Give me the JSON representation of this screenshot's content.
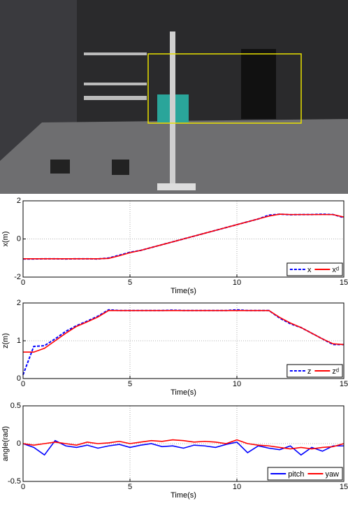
{
  "chart_data": [
    {
      "type": "line",
      "xlabel": "Time(s)",
      "ylabel": "x(m)",
      "x": [
        0,
        0.5,
        1,
        1.5,
        2,
        2.5,
        3,
        3.5,
        4,
        4.5,
        5,
        5.5,
        6,
        6.5,
        7,
        7.5,
        8,
        8.5,
        9,
        9.5,
        10,
        10.5,
        11,
        11.5,
        12,
        12.5,
        13,
        13.5,
        14,
        14.5,
        15
      ],
      "xlim": [
        0,
        15
      ],
      "xticks": [
        0,
        5,
        10,
        15
      ],
      "ylim": [
        -2,
        2
      ],
      "yticks": [
        -2,
        0,
        2
      ],
      "grid": true,
      "legend": "lower right",
      "series": [
        {
          "name": "x",
          "color": "#0000ff",
          "style": "dashed",
          "values": [
            -1.05,
            -1.05,
            -1.04,
            -1.04,
            -1.05,
            -1.04,
            -1.04,
            -1.05,
            -1.0,
            -0.85,
            -0.7,
            -0.6,
            -0.45,
            -0.3,
            -0.15,
            0.0,
            0.15,
            0.3,
            0.45,
            0.6,
            0.75,
            0.9,
            1.05,
            1.25,
            1.3,
            1.27,
            1.28,
            1.28,
            1.3,
            1.28,
            1.12
          ]
        },
        {
          "name": "xᵈ",
          "color": "#ff0000",
          "style": "solid",
          "values": [
            -1.04,
            -1.04,
            -1.04,
            -1.04,
            -1.04,
            -1.04,
            -1.04,
            -1.04,
            -1.02,
            -0.88,
            -0.72,
            -0.6,
            -0.45,
            -0.3,
            -0.15,
            0,
            0.15,
            0.3,
            0.45,
            0.6,
            0.75,
            0.9,
            1.05,
            1.2,
            1.3,
            1.28,
            1.28,
            1.28,
            1.28,
            1.28,
            1.15
          ]
        }
      ]
    },
    {
      "type": "line",
      "xlabel": "Time(s)",
      "ylabel": "z(m)",
      "x": [
        0,
        0.5,
        1,
        1.5,
        2,
        2.5,
        3,
        3.5,
        4,
        4.5,
        5,
        5.5,
        6,
        6.5,
        7,
        7.5,
        8,
        8.5,
        9,
        9.5,
        10,
        10.5,
        11,
        11.5,
        12,
        12.5,
        13,
        13.5,
        14,
        14.5,
        15
      ],
      "xlim": [
        0,
        15
      ],
      "xticks": [
        0,
        5,
        10,
        15
      ],
      "ylim": [
        0,
        2
      ],
      "yticks": [
        0,
        1,
        2
      ],
      "grid": true,
      "legend": "lower right",
      "series": [
        {
          "name": "z",
          "color": "#0000ff",
          "style": "dashed",
          "values": [
            0.1,
            0.85,
            0.87,
            1.05,
            1.25,
            1.4,
            1.52,
            1.65,
            1.82,
            1.8,
            1.8,
            1.8,
            1.8,
            1.8,
            1.81,
            1.8,
            1.8,
            1.8,
            1.8,
            1.8,
            1.82,
            1.8,
            1.8,
            1.8,
            1.6,
            1.45,
            1.35,
            1.2,
            1.05,
            0.9,
            0.9
          ]
        },
        {
          "name": "zᵈ",
          "color": "#ff0000",
          "style": "solid",
          "values": [
            0.7,
            0.7,
            0.8,
            1.0,
            1.2,
            1.38,
            1.5,
            1.63,
            1.8,
            1.8,
            1.8,
            1.8,
            1.8,
            1.8,
            1.8,
            1.8,
            1.8,
            1.8,
            1.8,
            1.8,
            1.8,
            1.8,
            1.8,
            1.8,
            1.62,
            1.47,
            1.35,
            1.2,
            1.05,
            0.92,
            0.9
          ]
        }
      ]
    },
    {
      "type": "line",
      "xlabel": "Time(s)",
      "ylabel": "angle(rad)",
      "x": [
        0,
        0.5,
        1,
        1.5,
        2,
        2.5,
        3,
        3.5,
        4,
        4.5,
        5,
        5.5,
        6,
        6.5,
        7,
        7.5,
        8,
        8.5,
        9,
        9.5,
        10,
        10.5,
        11,
        11.5,
        12,
        12.5,
        13,
        13.5,
        14,
        14.5,
        15
      ],
      "xlim": [
        0,
        15
      ],
      "xticks": [
        0,
        5,
        10,
        15
      ],
      "ylim": [
        -0.5,
        0.5
      ],
      "yticks": [
        -0.5,
        0,
        0.5
      ],
      "grid": true,
      "legend": "lower right",
      "series": [
        {
          "name": "pitch",
          "color": "#0000ff",
          "style": "solid",
          "values": [
            0,
            -0.05,
            -0.15,
            0.04,
            -0.03,
            -0.05,
            -0.02,
            -0.06,
            -0.03,
            -0.01,
            -0.05,
            -0.02,
            0,
            -0.04,
            -0.03,
            -0.06,
            -0.02,
            -0.03,
            -0.05,
            -0.01,
            0.02,
            -0.12,
            -0.03,
            -0.06,
            -0.08,
            -0.03,
            -0.15,
            -0.05,
            -0.1,
            -0.03,
            -0.03
          ]
        },
        {
          "name": "yaw",
          "color": "#ff0000",
          "style": "solid",
          "values": [
            0,
            -0.02,
            0,
            0.02,
            0,
            -0.02,
            0.02,
            0,
            0.01,
            0.03,
            0,
            0.02,
            0.04,
            0.03,
            0.05,
            0.04,
            0.02,
            0.03,
            0.02,
            0,
            0.05,
            0,
            -0.02,
            -0.03,
            -0.05,
            -0.07,
            -0.05,
            -0.07,
            -0.05,
            -0.04,
            0
          ]
        }
      ]
    }
  ]
}
